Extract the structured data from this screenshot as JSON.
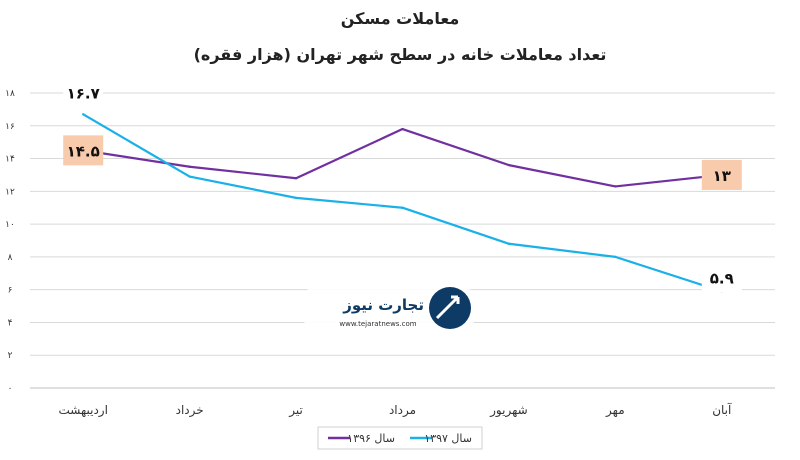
{
  "chart_data": {
    "type": "line",
    "title": "معاملات مسکن",
    "subtitle": "تعداد معاملات خانه در سطح شهر تهران (هزار فقره)",
    "categories": [
      "اردیبهشت",
      "خرداد",
      "تیر",
      "مرداد",
      "شهریور",
      "مهر",
      "آبان"
    ],
    "series": [
      {
        "name": "سال ۱۳۹۶",
        "values": [
          14.5,
          13.5,
          12.8,
          15.8,
          13.6,
          12.3,
          13.0
        ],
        "color": "#7030a0"
      },
      {
        "name": "سال ۱۳۹۷",
        "values": [
          16.7,
          12.9,
          11.6,
          11.0,
          8.8,
          8.0,
          5.9
        ],
        "color": "#1ab0e8"
      }
    ],
    "data_labels": [
      {
        "series": 0,
        "index": 0,
        "text": "۱۴.۵"
      },
      {
        "series": 0,
        "index": 6,
        "text": "۱۳"
      },
      {
        "series": 1,
        "index": 0,
        "text": "۱۶.۷"
      },
      {
        "series": 1,
        "index": 6,
        "text": "۵.۹"
      }
    ],
    "yticks": [
      "۰",
      "۲",
      "۴",
      "۶",
      "۸",
      "۱۰",
      "۱۲",
      "۱۴",
      "۱۶",
      "۱۸"
    ],
    "ylim": [
      0,
      18
    ],
    "grid": true,
    "legend_position": "bottom",
    "label_bg_color": "#f8cbad"
  },
  "watermark": {
    "brand": "تجارت نیوز",
    "url": "www.tejaratnews.com"
  }
}
